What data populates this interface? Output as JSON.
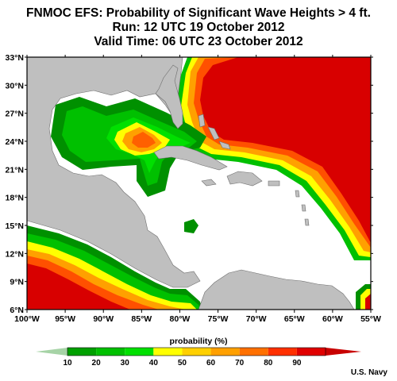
{
  "header": {
    "title": "FNMOC EFS: Probability of Significant Wave Heights > 4 ft.",
    "run": "Run: 12 UTC 19 October 2012",
    "valid": "Valid Time: 06 UTC 23 October 2012"
  },
  "map": {
    "lon_range": [
      -100,
      -55
    ],
    "lat_range": [
      6,
      33
    ],
    "lon_ticks": [
      "100°W",
      "95°W",
      "90°W",
      "85°W",
      "80°W",
      "75°W",
      "70°W",
      "65°W",
      "60°W",
      "55°W"
    ],
    "lat_ticks": [
      "33°N",
      "30°N",
      "27°N",
      "24°N",
      "21°N",
      "18°N",
      "15°N",
      "12°N",
      "9°N",
      "6°N"
    ],
    "ocean_color": "#ffffff",
    "land_color": "#bfbfbf"
  },
  "colorbar": {
    "title": "probability (%)",
    "labels": [
      "10",
      "20",
      "30",
      "40",
      "50",
      "60",
      "70",
      "80",
      "90"
    ],
    "colors": [
      "#008000",
      "#00a000",
      "#00c000",
      "#00e000",
      "#ffff00",
      "#ffd000",
      "#ffa000",
      "#ff7000",
      "#ff3000",
      "#e00000",
      "#c80000"
    ]
  },
  "credit": "U.S. Navy"
}
